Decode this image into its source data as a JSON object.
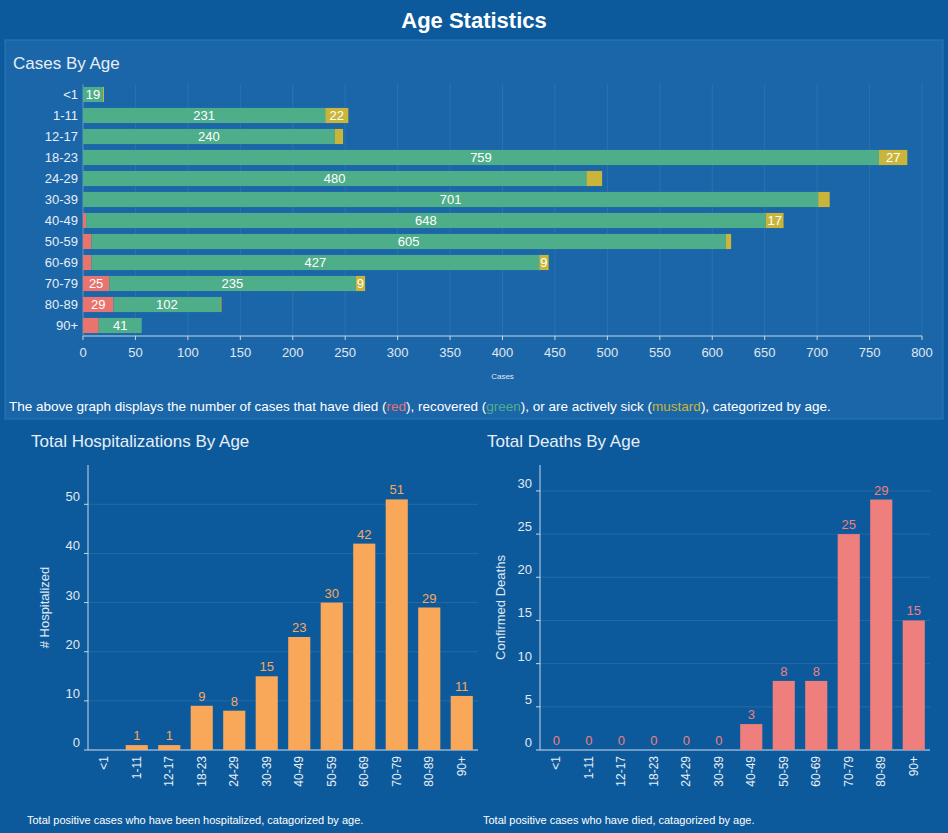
{
  "title": "Age Statistics",
  "chart_data": [
    {
      "type": "bar",
      "title": "Cases By Age",
      "orientation": "horizontal",
      "stacked": true,
      "data_labels": true,
      "grid": true,
      "x_label": "Cases",
      "caption": [
        "The above graph displays the number of cases that have died (",
        "), recovered (",
        "), or are actively sick (",
        "), categorized by age."
      ],
      "categories": [
        "<1",
        "1-11",
        "12-17",
        "18-23",
        "24-29",
        "30-39",
        "40-49",
        "50-59",
        "60-69",
        "70-79",
        "80-89",
        "90+"
      ],
      "series": [
        {
          "name": "red",
          "color": "#e8736f",
          "values": [
            0,
            0,
            0,
            0,
            0,
            0,
            3,
            8,
            8,
            25,
            29,
            15
          ]
        },
        {
          "name": "green",
          "color": "#4fae8a",
          "values": [
            19,
            231,
            240,
            759,
            480,
            701,
            648,
            605,
            427,
            235,
            102,
            41
          ]
        },
        {
          "name": "mustard",
          "color": "#c9b53a",
          "values": [
            1,
            22,
            8,
            27,
            15,
            11,
            17,
            5,
            9,
            9,
            1,
            0
          ]
        }
      ],
      "xlim": [
        0,
        800
      ],
      "xticks": [
        0,
        50,
        100,
        150,
        200,
        250,
        300,
        350,
        400,
        450,
        500,
        550,
        600,
        650,
        700,
        750,
        800
      ]
    },
    {
      "type": "bar",
      "title": "Total Hospitalizations By Age",
      "data_labels": true,
      "grid": true,
      "y_label": "# Hospitalized",
      "caption": "Total positive cases who have been hospitalized, catagorized by age.",
      "categories": [
        "<1",
        "1-11",
        "12-17",
        "18-23",
        "24-29",
        "30-39",
        "40-49",
        "50-59",
        "60-69",
        "70-79",
        "80-89",
        "90+"
      ],
      "values": [
        null,
        1,
        1,
        9,
        8,
        15,
        23,
        30,
        42,
        51,
        29,
        11
      ],
      "color": "#f9a85a",
      "ylim": [
        0,
        58
      ],
      "yticks": [
        0,
        10,
        20,
        30,
        40,
        50
      ]
    },
    {
      "type": "bar",
      "title": "Total Deaths By Age",
      "data_labels": true,
      "grid": true,
      "y_label": "Confirmed Deaths",
      "caption": "Total positive cases who have died, catagorized by age.",
      "categories": [
        "<1",
        "1-11",
        "12-17",
        "18-23",
        "24-29",
        "30-39",
        "40-49",
        "50-59",
        "60-69",
        "70-79",
        "80-89",
        "90+"
      ],
      "values": [
        0,
        0,
        0,
        0,
        0,
        0,
        3,
        8,
        8,
        25,
        29,
        15
      ],
      "color": "#ef7f7c",
      "ylim": [
        0,
        33
      ],
      "yticks": [
        0,
        5,
        10,
        15,
        20,
        25,
        30
      ]
    }
  ]
}
